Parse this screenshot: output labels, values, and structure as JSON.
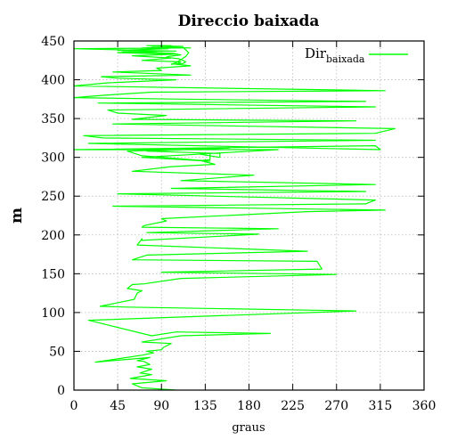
{
  "chart_data": {
    "type": "line",
    "title": "Direccio baixada",
    "xlabel": "graus",
    "ylabel": "m",
    "xlim": [
      0,
      360
    ],
    "ylim": [
      0,
      450
    ],
    "xticks": [
      0,
      45,
      90,
      135,
      180,
      225,
      270,
      315,
      360
    ],
    "yticks": [
      0,
      50,
      100,
      150,
      200,
      250,
      300,
      350,
      400,
      450
    ],
    "grid": true,
    "legend_position": "top-right",
    "series": [
      {
        "name": "Dir",
        "name_subscript": "baixada",
        "color": "#00ff00",
        "x": [
          105,
          70,
          60,
          95,
          58,
          80,
          68,
          80,
          65,
          78,
          72,
          65,
          78,
          22,
          70,
          82,
          75,
          90,
          92,
          100,
          70,
          110,
          202,
          105,
          80,
          15,
          290,
          55,
          27,
          62,
          65,
          70,
          55,
          60,
          72,
          110,
          270,
          90,
          255,
          250,
          60,
          75,
          240,
          65,
          70,
          70,
          190,
          75,
          210,
          70,
          72,
          95,
          90,
          240,
          320,
          40,
          300,
          310,
          45,
          300,
          100,
          310,
          110,
          185,
          60,
          100,
          145,
          130,
          140,
          140,
          130,
          150,
          150,
          75,
          160,
          55,
          70,
          140,
          70,
          210,
          0,
          310,
          315,
          15,
          310,
          30,
          10,
          310,
          330,
          40,
          290,
          60,
          95,
          45,
          35,
          310,
          25,
          300,
          110,
          0,
          30,
          80,
          320,
          0,
          35,
          105,
          45,
          28,
          120,
          40,
          90,
          85,
          120,
          105,
          110,
          70,
          100,
          60,
          105,
          45,
          100,
          0,
          120,
          80,
          112,
          75,
          100,
          98,
          95,
          70,
          97,
          45,
          105,
          50,
          102,
          110,
          97,
          95,
          108,
          112,
          115,
          112,
          100,
          105,
          110,
          115,
          118,
          112
        ],
        "y": [
          0,
          3,
          8,
          12,
          15,
          20,
          22,
          27,
          30,
          33,
          37,
          38,
          42,
          36,
          45,
          48,
          50,
          52,
          55,
          60,
          62,
          70,
          73,
          75,
          70,
          90,
          102,
          107,
          108,
          117,
          125,
          128,
          131,
          136,
          137,
          144,
          149,
          152,
          156,
          166,
          168,
          174,
          179,
          187,
          195,
          193,
          201,
          203,
          208,
          210,
          212,
          218,
          221,
          230,
          232,
          237,
          240,
          245,
          253,
          256,
          260,
          265,
          270,
          277,
          282,
          288,
          291,
          296,
          297,
          305,
          304,
          300,
          305,
          308,
          312,
          308,
          302,
          295,
          300,
          310,
          310,
          315,
          310,
          318,
          322,
          325,
          328,
          331,
          337,
          343,
          347,
          349,
          354,
          357,
          361,
          365,
          370,
          372,
          375,
          377,
          380,
          384,
          386,
          392,
          396,
          400,
          402,
          404,
          406,
          410,
          412,
          415,
          418,
          420,
          423,
          425,
          428,
          431,
          433,
          435,
          437,
          440,
          441,
          442,
          443,
          444,
          444,
          443,
          442,
          441,
          440,
          438,
          437,
          436,
          434,
          432,
          430,
          429,
          427,
          425,
          423,
          421,
          420,
          422,
          426,
          430,
          435,
          442
        ]
      }
    ]
  }
}
